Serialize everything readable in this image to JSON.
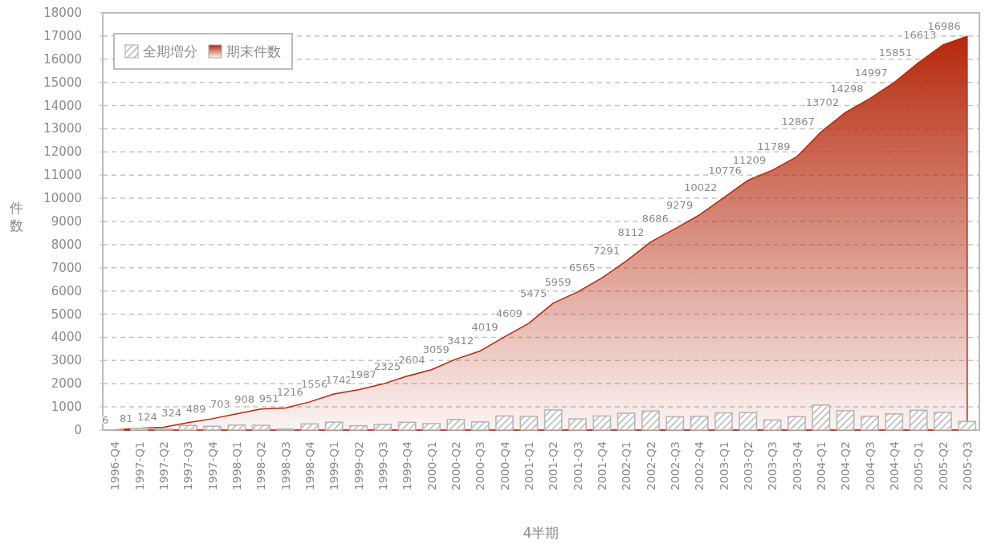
{
  "chart_data": {
    "type": "bar",
    "xlabel": "4半期",
    "ylabel": "件数",
    "categories": [
      "1996-Q4",
      "1997-Q1",
      "1997-Q2",
      "1997-Q3",
      "1997-Q4",
      "1998-Q1",
      "1998-Q2",
      "1998-Q3",
      "1998-Q4",
      "1999-Q1",
      "1999-Q2",
      "1999-Q3",
      "1999-Q4",
      "2000-Q1",
      "2000-Q2",
      "2000-Q3",
      "2000-Q4",
      "2001-Q1",
      "2001-Q2",
      "2001-Q3",
      "2001-Q4",
      "2002-Q1",
      "2002-Q2",
      "2002-Q3",
      "2002-Q4",
      "2003-Q1",
      "2003-Q2",
      "2003-Q3",
      "2003-Q4",
      "2004-Q1",
      "2004-Q2",
      "2004-Q3",
      "2004-Q4",
      "2005-Q1",
      "2005-Q2",
      "2005-Q3"
    ],
    "series": [
      {
        "name": "全期増分",
        "color": "#b4b4b4",
        "values": [
          6,
          75,
          43,
          200,
          165,
          214,
          205,
          43,
          265,
          340,
          186,
          245,
          338,
          279,
          455,
          353,
          607,
          590,
          866,
          484,
          606,
          726,
          821,
          574,
          593,
          743,
          754,
          433,
          580,
          1078,
          835,
          596,
          699,
          854,
          762,
          373
        ]
      },
      {
        "name": "期末件数",
        "type": "area",
        "color": "#b5280c",
        "values": [
          6,
          81,
          124,
          324,
          489,
          703,
          908,
          951,
          1216,
          1556,
          1742,
          1987,
          2325,
          2604,
          3059,
          3412,
          4019,
          4609,
          5475,
          5959,
          6565,
          7291,
          8112,
          8686,
          9279,
          10022,
          10776,
          11209,
          11789,
          12867,
          13702,
          14298,
          14997,
          15851,
          16613,
          16986
        ],
        "value_labels": [
          "6",
          "81",
          "124",
          "324",
          "489",
          "703",
          "908",
          "951",
          "1216",
          "1556",
          "1742",
          "1987",
          "2325",
          "2604",
          "3059",
          "3412",
          "4019",
          "4609",
          "5475",
          "5959",
          "6565",
          "7291",
          "8112",
          "8686",
          "9279",
          "10022",
          "10776",
          "11209",
          "11789",
          "12867",
          "13702",
          "14298",
          "14997",
          "15851",
          "16613",
          "16986"
        ]
      }
    ],
    "ylim": [
      0,
      18000
    ],
    "yticks": [
      0,
      1000,
      2000,
      3000,
      4000,
      5000,
      6000,
      7000,
      8000,
      9000,
      10000,
      11000,
      12000,
      13000,
      14000,
      15000,
      16000,
      17000,
      18000
    ],
    "grid": "y",
    "legend": "top left"
  }
}
